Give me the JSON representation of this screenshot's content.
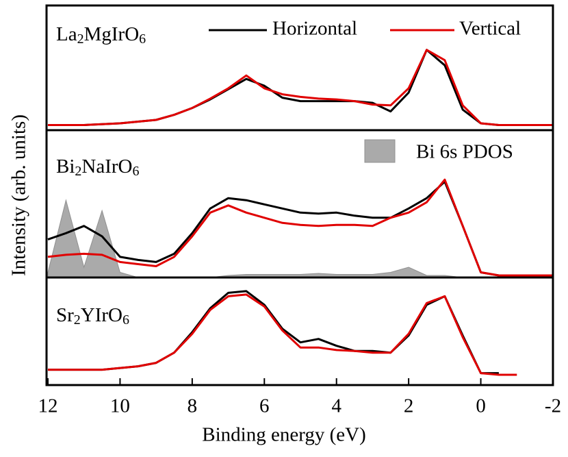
{
  "chart_data": {
    "type": "line",
    "xlabel": "Binding energy (eV)",
    "ylabel": "Intensity (arb. units)",
    "xlim": [
      12,
      -2
    ],
    "xticks": [
      12,
      10,
      8,
      6,
      4,
      2,
      0,
      -2
    ],
    "panels": [
      {
        "label": "La2MgIrO6",
        "ylim": [
          -0.04,
          1.42
        ],
        "x": [
          12,
          11.5,
          11,
          10.5,
          10,
          9.5,
          9,
          8.5,
          8,
          7.5,
          7,
          6.5,
          6,
          5.5,
          5,
          4.5,
          4,
          3.5,
          3,
          2.5,
          2,
          1.5,
          1,
          0.5,
          0,
          -0.5,
          -1,
          -1.5,
          -2
        ],
        "series": [
          {
            "name": "Horizontal",
            "color": "#000000",
            "values": [
              0.02,
              0.02,
              0.02,
              0.03,
              0.04,
              0.06,
              0.08,
              0.14,
              0.22,
              0.32,
              0.44,
              0.56,
              0.48,
              0.34,
              0.3,
              0.3,
              0.3,
              0.3,
              0.28,
              0.18,
              0.4,
              0.9,
              0.72,
              0.2,
              0.04,
              0.02,
              0.02,
              0.02,
              0.02
            ]
          },
          {
            "name": "Vertical",
            "color": "#e00000",
            "values": [
              0.02,
              0.02,
              0.02,
              0.03,
              0.04,
              0.06,
              0.08,
              0.14,
              0.22,
              0.33,
              0.45,
              0.6,
              0.45,
              0.38,
              0.35,
              0.33,
              0.32,
              0.3,
              0.26,
              0.25,
              0.45,
              0.9,
              0.78,
              0.25,
              0.04,
              0.02,
              0.02,
              0.02,
              0.02
            ]
          }
        ]
      },
      {
        "label": "Bi2NaIrO6",
        "ylim": [
          0,
          1.43
        ],
        "x": [
          12,
          11.5,
          11,
          10.5,
          10,
          9.5,
          9,
          8.5,
          8,
          7.5,
          7,
          6.5,
          6,
          5.5,
          5,
          4.5,
          4,
          3.5,
          3,
          2.5,
          2,
          1.5,
          1,
          0.5,
          0,
          -0.5,
          -1,
          -1.5,
          -2
        ],
        "series": [
          {
            "name": "Bi 6s PDOS",
            "type": "area",
            "color": "#aaaaaa",
            "values": [
              0.05,
              0.75,
              0.1,
              0.65,
              0.05,
              0,
              0,
              0,
              0,
              0,
              0.02,
              0.03,
              0.03,
              0.03,
              0.03,
              0.04,
              0.03,
              0.03,
              0.03,
              0.05,
              0.1,
              0.02,
              0.02,
              0,
              0,
              0,
              0,
              0,
              0
            ]
          },
          {
            "name": "Horizontal",
            "color": "#000000",
            "values": [
              0.37,
              0.43,
              0.5,
              0.4,
              0.2,
              0.17,
              0.15,
              0.23,
              0.43,
              0.67,
              0.77,
              0.75,
              0.71,
              0.67,
              0.63,
              0.62,
              0.63,
              0.6,
              0.58,
              0.58,
              0.67,
              0.77,
              0.93,
              0.5,
              0.05,
              0.02,
              0.02,
              0.02,
              0.02
            ]
          },
          {
            "name": "Vertical",
            "color": "#e00000",
            "values": [
              0.2,
              0.22,
              0.23,
              0.22,
              0.15,
              0.13,
              0.11,
              0.2,
              0.4,
              0.63,
              0.7,
              0.63,
              0.58,
              0.53,
              0.51,
              0.5,
              0.51,
              0.51,
              0.5,
              0.58,
              0.63,
              0.73,
              0.95,
              0.5,
              0.05,
              0.02,
              0.02,
              0.02,
              0.02
            ]
          }
        ]
      },
      {
        "label": "Sr2YIrO6",
        "ylim": [
          -0.14,
          1.12
        ],
        "x": [
          12,
          11.5,
          11,
          10.5,
          10,
          9.5,
          9,
          8.5,
          8,
          7.5,
          7,
          6.5,
          6,
          5.5,
          5,
          4.5,
          4,
          3.5,
          3,
          2.5,
          2,
          1.5,
          1,
          0.5,
          0,
          -0.5,
          -1,
          -1.5,
          -2
        ],
        "series": [
          {
            "name": "Horizontal",
            "color": "#000000",
            "values": [
              0.04,
              0.04,
              0.04,
              0.04,
              0.06,
              0.08,
              0.12,
              0.24,
              0.48,
              0.76,
              0.94,
              0.96,
              0.8,
              0.52,
              0.36,
              0.4,
              0.32,
              0.26,
              0.26,
              0.24,
              0.44,
              0.8,
              0.9,
              0.44,
              0,
              0,
              null,
              null,
              null
            ]
          },
          {
            "name": "Vertical",
            "color": "#e00000",
            "values": [
              0.04,
              0.04,
              0.04,
              0.04,
              0.06,
              0.08,
              0.12,
              0.24,
              0.46,
              0.74,
              0.9,
              0.92,
              0.78,
              0.5,
              0.3,
              0.3,
              0.27,
              0.26,
              0.24,
              0.24,
              0.46,
              0.82,
              0.9,
              0.42,
              0,
              -0.02,
              -0.02,
              null,
              null
            ]
          }
        ]
      }
    ]
  }
}
